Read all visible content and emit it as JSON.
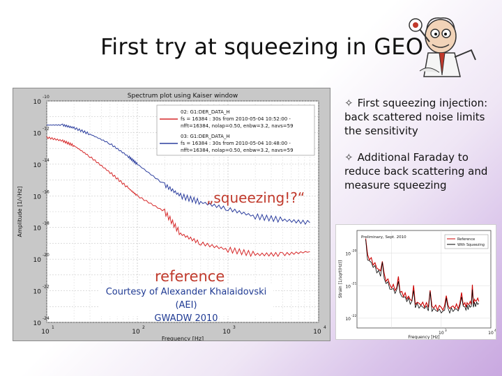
{
  "slide": {
    "title": "First try at squeezing in GEO",
    "bullets": [
      {
        "text": "First squeezing injection: back scattered noise limits the sensitivity"
      },
      {
        "text": "Additional Faraday to reduce back scattering and measure squeezing"
      }
    ],
    "bullet_icon": "sparkle-star-icon"
  },
  "overlays": {
    "squeezing_label": "„squeezing!?“",
    "reference_label": "reference",
    "courtesy_line1": "Courtesy of Alexander Khalaidovski (AEI)",
    "courtesy_line2": "GWADW 2010"
  },
  "chart_data": [
    {
      "type": "line",
      "title": "Spectrum plot using Kaiser window",
      "xlabel": "Frequency [Hz]",
      "ylabel": "Amplitude [1/√Hz]",
      "x_scale": "log",
      "y_scale": "log",
      "xlim": [
        10,
        10000
      ],
      "ylim": [
        1e-24,
        1e-10
      ],
      "x_ticks": [
        "10",
        "10",
        "10",
        "10"
      ],
      "x_tick_exponents": [
        "1",
        "2",
        "3",
        "4"
      ],
      "y_ticks": [
        "10",
        "10",
        "10",
        "10",
        "10",
        "10",
        "10",
        "10"
      ],
      "y_tick_exponents": [
        "-10",
        "-12",
        "-14",
        "-16",
        "-18",
        "-20",
        "-22",
        "-24"
      ],
      "grid": true,
      "legend_position": "top-right",
      "legend": [
        {
          "label": "02: G1:DER_DATA_H",
          "detail1": "fs = 16384 : 30s from 2010-05-04 10:52:00 -",
          "detail2": "nfft=16384, nolap=0.50, enbw=3.2, navs=59",
          "color": "#d62728"
        },
        {
          "label": "03: G1:DER_DATA_H",
          "detail1": "fs = 16384 : 30s from 2010-05-04 10:48:00 -",
          "detail2": "nfft=16384, nolap=0.50, enbw=3.2, navs=59",
          "color": "#2c3e9e"
        }
      ],
      "series": [
        {
          "color": "#2c3e9e",
          "points": [
            [
              10,
              3e-12
            ],
            [
              15,
              3e-12
            ],
            [
              20,
              2e-12
            ],
            [
              30,
              8e-13
            ],
            [
              50,
              2e-13
            ],
            [
              80,
              3e-14
            ],
            [
              100,
              1e-14
            ],
            [
              200,
              5e-16
            ],
            [
              300,
              1e-16
            ],
            [
              500,
              4e-17
            ],
            [
              1000,
              1.5e-17
            ],
            [
              2000,
              5e-18
            ],
            [
              4000,
              3e-18
            ],
            [
              8000,
              2e-18
            ]
          ]
        },
        {
          "color": "#d62728",
          "points": [
            [
              10,
              5e-13
            ],
            [
              15,
              3e-13
            ],
            [
              20,
              1.5e-13
            ],
            [
              30,
              3e-14
            ],
            [
              50,
              3e-15
            ],
            [
              80,
              3e-16
            ],
            [
              100,
              1e-16
            ],
            [
              200,
              1e-17
            ],
            [
              300,
              4e-19
            ],
            [
              500,
              1e-19
            ],
            [
              1000,
              4e-20
            ],
            [
              2000,
              2e-20
            ],
            [
              4000,
              2e-20
            ],
            [
              8000,
              3e-20
            ]
          ]
        }
      ]
    },
    {
      "type": "line",
      "title": "Preliminary, Sept. 2010",
      "xlabel": "Frequency [Hz]",
      "ylabel": "Strain [1/sqrt(Hz)]",
      "x_scale": "log",
      "y_scale": "log",
      "legend_position": "top-right",
      "y_ticks": [
        "10",
        "10",
        "10"
      ],
      "y_tick_exponents": [
        "-20",
        "-21",
        "-22"
      ],
      "x_ticks": [
        "10",
        "10"
      ],
      "x_tick_exponents": [
        "3",
        "4"
      ],
      "legend": [
        {
          "label": "Reference",
          "color": "#cc0000"
        },
        {
          "label": "With Squeezing",
          "color": "#000000"
        }
      ],
      "series": [
        {
          "name": "Reference",
          "color": "#cc0000",
          "points": [
            [
              30,
              1e-20
            ],
            [
              100,
              1e-21
            ],
            [
              300,
              3e-22
            ],
            [
              1000,
              2e-22
            ],
            [
              3000,
              2.5e-22
            ],
            [
              6000,
              4e-22
            ]
          ]
        },
        {
          "name": "With Squeezing",
          "color": "#000000",
          "points": [
            [
              30,
              8e-21
            ],
            [
              100,
              8e-22
            ],
            [
              300,
              2.5e-22
            ],
            [
              1000,
              1.6e-22
            ],
            [
              3000,
              2e-22
            ],
            [
              6000,
              3e-22
            ]
          ]
        }
      ]
    }
  ]
}
